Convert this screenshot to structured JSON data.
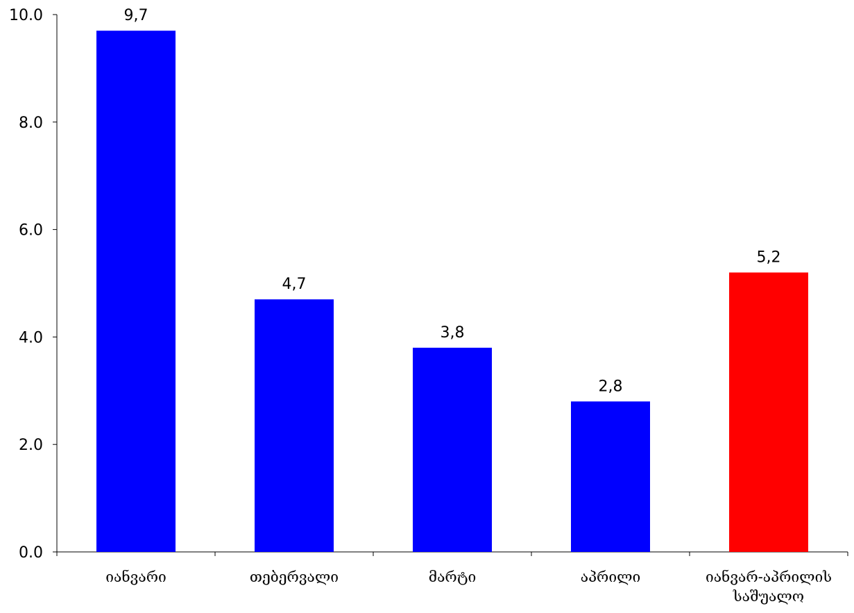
{
  "chart_data": {
    "type": "bar",
    "categories": [
      "იანვარი",
      "თებერვალი",
      "მარტი",
      "აპრილი",
      "იანვარ-აპრილის საშუალო"
    ],
    "values": [
      9.7,
      4.7,
      3.8,
      2.8,
      5.2
    ],
    "value_labels": [
      "9,7",
      "4,7",
      "3,8",
      "2,8",
      "5,2"
    ],
    "bar_colors": [
      "#0000FF",
      "#0000FF",
      "#0000FF",
      "#0000FF",
      "#FF0000"
    ],
    "yticks": [
      "0.0",
      "2.0",
      "4.0",
      "6.0",
      "8.0",
      "10.0"
    ],
    "ylim": [
      0,
      10
    ],
    "grid": false,
    "title": "",
    "xlabel": "",
    "ylabel": ""
  }
}
